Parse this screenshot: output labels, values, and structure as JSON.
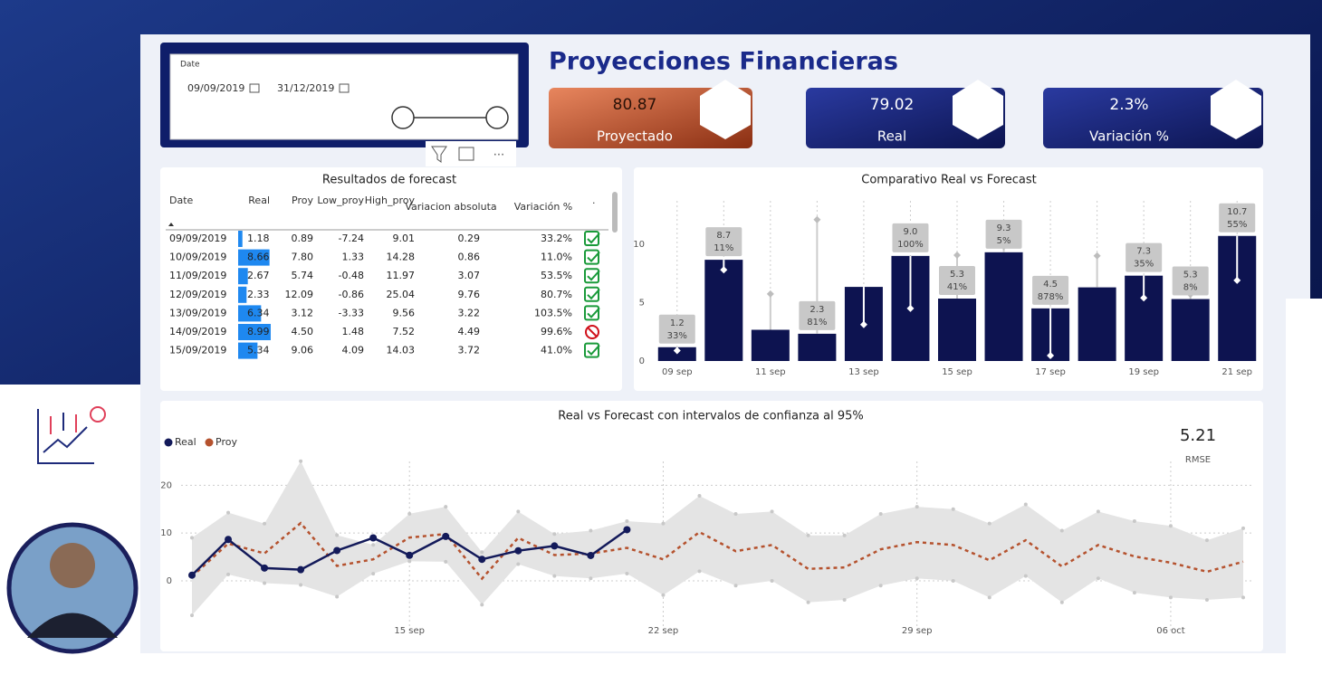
{
  "header": {
    "title": "Proyecciones Financieras"
  },
  "date_filter": {
    "label": "Date",
    "start": "09/09/2019",
    "end": "31/12/2019"
  },
  "kpis": [
    {
      "value": "80.87",
      "label": "Proyectado"
    },
    {
      "value": "79.02",
      "label": "Real"
    },
    {
      "value": "2.3%",
      "label": "Variación %"
    }
  ],
  "table": {
    "title": "Resultados de forecast",
    "columns": [
      "Date",
      "Real",
      "Proy",
      "Low_proy",
      "High_proy",
      "Variacion absoluta",
      "Variación %",
      "."
    ],
    "rows": [
      [
        "09/09/2019",
        "1.18",
        "0.89",
        "-7.24",
        "9.01",
        "0.29",
        "33.2%"
      ],
      [
        "10/09/2019",
        "8.66",
        "7.80",
        "1.33",
        "14.28",
        "0.86",
        "11.0%"
      ],
      [
        "11/09/2019",
        "2.67",
        "5.74",
        "-0.48",
        "11.97",
        "3.07",
        "53.5%"
      ],
      [
        "12/09/2019",
        "2.33",
        "12.09",
        "-0.86",
        "25.04",
        "9.76",
        "80.7%"
      ],
      [
        "13/09/2019",
        "6.34",
        "3.12",
        "-3.33",
        "9.56",
        "3.22",
        "103.5%"
      ],
      [
        "14/09/2019",
        "8.99",
        "4.50",
        "1.48",
        "7.52",
        "4.49",
        "99.6%"
      ],
      [
        "15/09/2019",
        "5.34",
        "9.06",
        "4.09",
        "14.03",
        "3.72",
        "41.0%"
      ]
    ]
  },
  "chart_data": [
    {
      "type": "bar",
      "title": "Comparativo Real vs Forecast",
      "categories": [
        "09 sep",
        null,
        "11 sep",
        null,
        "13 sep",
        null,
        "15 sep",
        null,
        "17 sep",
        null,
        "19 sep",
        null,
        "21 sep"
      ],
      "series": [
        {
          "name": "Real",
          "color": "#0d1350",
          "values": [
            1.18,
            8.66,
            2.67,
            2.33,
            6.34,
            8.99,
            5.34,
            9.3,
            4.5,
            6.3,
            7.3,
            5.3,
            10.7
          ],
          "value_labels": [
            "1.2",
            "8.7",
            null,
            "2.3",
            null,
            "9.0",
            "5.3",
            "9.3",
            "4.5",
            null,
            "7.3",
            "5.3",
            "10.7"
          ],
          "variation_labels": [
            "33%",
            "11%",
            null,
            "81%",
            null,
            "100%",
            "41%",
            "5%",
            "878%",
            null,
            "35%",
            "8%",
            "55%"
          ]
        },
        {
          "name": "Proy",
          "color": "#bdbdbd",
          "values": [
            0.89,
            7.8,
            5.74,
            12.09,
            3.12,
            4.5,
            9.06,
            9.8,
            0.46,
            9.0,
            5.4,
            5.7,
            6.9
          ]
        }
      ],
      "ylim": [
        0,
        13.7
      ],
      "yticks": [
        0,
        5,
        10
      ]
    },
    {
      "type": "line",
      "title": "Real vs Forecast con intervalos de confianza al 95%",
      "kpi": {
        "value": "5.21",
        "label": "RMSE"
      },
      "legend": "top-left",
      "categories": [
        null,
        null,
        null,
        null,
        null,
        null,
        "15 sep",
        null,
        null,
        null,
        null,
        null,
        null,
        "22 sep",
        null,
        null,
        null,
        null,
        null,
        null,
        "29 sep",
        null,
        null,
        null,
        null,
        null,
        null,
        "06 oct",
        null,
        null
      ],
      "series": [
        {
          "name": "Real",
          "color": "#131a5a",
          "values": [
            1.18,
            8.66,
            2.67,
            2.33,
            6.34,
            8.99,
            5.34,
            9.3,
            4.5,
            6.3,
            7.3,
            5.3,
            10.7,
            null,
            null,
            null,
            null,
            null,
            null,
            null,
            null,
            null,
            null,
            null,
            null,
            null,
            null,
            null,
            null,
            null
          ]
        },
        {
          "name": "Proy",
          "color": "#b5522e",
          "values": [
            0.89,
            7.8,
            5.74,
            12.09,
            3.12,
            4.5,
            9.06,
            9.8,
            0.46,
            9.0,
            5.4,
            5.7,
            6.9,
            4.5,
            10.2,
            6.2,
            7.5,
            2.5,
            2.8,
            6.6,
            8.1,
            7.5,
            4.3,
            8.5,
            3.0,
            7.5,
            5.1,
            3.8,
            1.9,
            4.0
          ]
        }
      ],
      "band": {
        "low": [
          -7.24,
          1.33,
          -0.48,
          -0.86,
          -3.33,
          1.48,
          4.09,
          4.0,
          -5.0,
          3.5,
          1.0,
          0.5,
          1.5,
          -3.0,
          2.0,
          -1.0,
          0.0,
          -4.5,
          -4.0,
          -1.0,
          0.5,
          0.0,
          -3.5,
          1.0,
          -4.5,
          0.5,
          -2.5,
          -3.5,
          -4.0,
          -3.5
        ],
        "high": [
          9.01,
          14.28,
          11.97,
          25.04,
          9.56,
          7.52,
          14.03,
          15.5,
          6.0,
          14.5,
          9.8,
          10.5,
          12.5,
          12.0,
          17.8,
          14.0,
          14.5,
          9.5,
          9.5,
          14.0,
          15.5,
          15.0,
          12.0,
          16.0,
          10.5,
          14.5,
          12.5,
          11.5,
          8.5,
          11.0
        ]
      },
      "ylim": [
        -11,
        25
      ],
      "yticks": [
        0,
        10,
        20
      ],
      "grid": true
    }
  ]
}
